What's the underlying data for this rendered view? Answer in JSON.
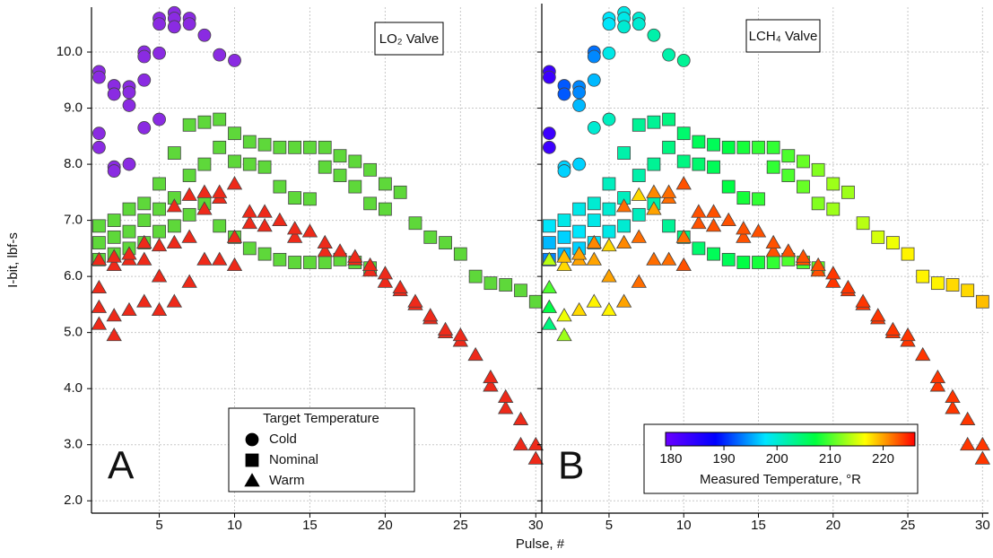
{
  "chart_data": {
    "type": "scatter",
    "x_label": "Pulse, #",
    "y_label": "I-bit, lbf-s",
    "xlim": [
      0.5,
      30.4
    ],
    "ylim": [
      1.78,
      10.8
    ],
    "xticks": [
      5,
      10,
      15,
      20,
      25,
      30
    ],
    "yticks": [
      {
        "value": 2,
        "label": "2.0"
      },
      {
        "value": 3,
        "label": "3.0"
      },
      {
        "value": 4,
        "label": "4.0"
      },
      {
        "value": 5,
        "label": "5.0"
      },
      {
        "value": 6,
        "label": "6.0"
      },
      {
        "value": 7,
        "label": "7.0"
      },
      {
        "value": 8,
        "label": "8.0"
      },
      {
        "value": 9,
        "label": "9.0"
      },
      {
        "value": 10,
        "label": "10.0"
      }
    ],
    "grid": true,
    "panels": [
      {
        "label": "A",
        "annotation": "LO₂ Valve",
        "color_by": "series"
      },
      {
        "label": "B",
        "annotation": "LCH₄ Valve",
        "color_by": "temperatures"
      }
    ],
    "legend": {
      "title": "Target Temperature",
      "corner": "lower-center"
    },
    "colorbar": {
      "title": "Measured Temperature, °R",
      "clim": [
        179,
        226
      ],
      "ticks": [
        180,
        190,
        200,
        210,
        220
      ],
      "colors": [
        "#6a00ff",
        "#0000ff",
        "#00e5ff",
        "#00ff40",
        "#ffff00",
        "#ff0000"
      ]
    },
    "series": [
      {
        "name": "Cold",
        "marker": "circle",
        "color": "#8a2be2",
        "x": [
          1,
          1,
          1,
          1,
          2,
          2,
          2,
          2,
          3,
          3,
          3,
          3,
          4,
          4,
          4,
          4,
          5,
          5,
          5,
          5,
          6,
          6,
          6,
          7,
          7,
          8,
          9,
          10
        ],
        "values": [
          9.65,
          9.55,
          8.55,
          8.3,
          9.4,
          9.25,
          7.95,
          7.88,
          9.38,
          9.28,
          9.05,
          8.0,
          10.0,
          9.92,
          9.5,
          8.65,
          10.6,
          10.5,
          9.98,
          8.8,
          10.7,
          10.6,
          10.45,
          10.6,
          10.5,
          10.3,
          9.95,
          9.85
        ],
        "temperatures": [
          183,
          183,
          183,
          183,
          192,
          192,
          197,
          197,
          194,
          194,
          196,
          197,
          193,
          194,
          196,
          200,
          198,
          198,
          199,
          201,
          199,
          199,
          200,
          200,
          200,
          202,
          202,
          203
        ]
      },
      {
        "name": "Nominal",
        "marker": "square",
        "color": "#5ed83a",
        "x": [
          1,
          2,
          3,
          4,
          5,
          6,
          7,
          8,
          9,
          10,
          11,
          12,
          13,
          14,
          15,
          16,
          17,
          18,
          19,
          20,
          21,
          22,
          23,
          24,
          25,
          26,
          27,
          28,
          29,
          30,
          1,
          2,
          3,
          4,
          5,
          6,
          7,
          8,
          9,
          10,
          11,
          12,
          13,
          14,
          15,
          16,
          17,
          18,
          19,
          20,
          1,
          2,
          3,
          4,
          5,
          6,
          7,
          8,
          9,
          10,
          11,
          12,
          13,
          14,
          15,
          16,
          17,
          18,
          19
        ],
        "values": [
          6.9,
          7.0,
          7.2,
          7.3,
          7.65,
          8.2,
          8.7,
          8.75,
          8.8,
          8.55,
          8.4,
          8.35,
          8.3,
          8.3,
          8.3,
          8.3,
          8.15,
          8.05,
          7.9,
          7.65,
          7.5,
          6.95,
          6.7,
          6.6,
          6.4,
          6.0,
          5.88,
          5.85,
          5.75,
          5.55,
          6.6,
          6.7,
          6.8,
          7.0,
          7.2,
          7.4,
          7.8,
          8.0,
          8.3,
          8.05,
          8.0,
          7.95,
          7.6,
          7.4,
          7.38,
          7.95,
          7.8,
          7.6,
          7.3,
          7.2,
          6.3,
          6.4,
          6.5,
          6.6,
          6.8,
          6.9,
          7.1,
          7.3,
          6.9,
          6.7,
          6.5,
          6.4,
          6.3,
          6.25,
          6.25,
          6.25,
          6.3,
          6.25,
          6.15
        ],
        "temperatures": [
          198,
          199,
          199,
          200,
          201,
          202,
          203,
          203,
          204,
          205,
          206,
          206,
          207,
          208,
          209,
          209,
          210,
          211,
          212,
          213,
          213,
          214,
          215,
          216,
          217,
          217,
          217,
          218,
          218,
          219,
          196,
          197,
          198,
          199,
          200,
          201,
          202,
          203,
          204,
          204,
          205,
          206,
          207,
          208,
          209,
          209,
          210,
          211,
          212,
          213,
          194,
          196,
          197,
          198,
          199,
          200,
          201,
          202,
          203,
          204,
          205,
          206,
          206,
          207,
          208,
          209,
          210,
          210,
          211
        ]
      },
      {
        "name": "Warm",
        "marker": "triangle",
        "color": "#ee2a1a",
        "x": [
          1,
          1,
          1,
          1,
          2,
          2,
          2,
          2,
          3,
          3,
          3,
          4,
          4,
          4,
          5,
          5,
          5,
          6,
          6,
          6,
          7,
          7,
          7,
          8,
          8,
          8,
          9,
          9,
          9,
          10,
          10,
          10,
          11,
          11,
          12,
          12,
          13,
          14,
          14,
          15,
          16,
          16,
          17,
          18,
          18,
          19,
          19,
          20,
          20,
          21,
          21,
          22,
          22,
          23,
          23,
          24,
          24,
          25,
          25,
          26,
          27,
          27,
          28,
          28,
          29,
          29,
          30,
          30
        ],
        "values": [
          5.15,
          5.45,
          5.8,
          6.3,
          4.95,
          5.3,
          6.2,
          6.35,
          5.4,
          6.3,
          6.4,
          5.55,
          6.3,
          6.6,
          5.4,
          6.0,
          6.55,
          5.55,
          6.6,
          7.25,
          5.9,
          6.7,
          7.45,
          6.3,
          7.2,
          7.5,
          6.3,
          7.4,
          7.5,
          6.2,
          6.7,
          7.65,
          6.95,
          7.15,
          6.9,
          7.15,
          7.0,
          6.7,
          6.85,
          6.8,
          6.45,
          6.6,
          6.45,
          6.3,
          6.35,
          6.1,
          6.2,
          5.9,
          6.05,
          5.75,
          5.8,
          5.5,
          5.55,
          5.25,
          5.3,
          5.0,
          5.05,
          4.85,
          4.95,
          4.6,
          4.05,
          4.2,
          3.65,
          3.85,
          3.0,
          3.45,
          2.75,
          3.0
        ],
        "temperatures": [
          204,
          207,
          210,
          214,
          213,
          216,
          218,
          219,
          218,
          220,
          220,
          217,
          220,
          221,
          217,
          220,
          218,
          220,
          221,
          222,
          222,
          222,
          218,
          222,
          220,
          221,
          222,
          222,
          222,
          223,
          222,
          223,
          223,
          223,
          223,
          223,
          223,
          223,
          223,
          223,
          223,
          223,
          223,
          223,
          223,
          223,
          223,
          224,
          224,
          224,
          224,
          224,
          224,
          224,
          224,
          224,
          224,
          224,
          224,
          224,
          224,
          224,
          224,
          224,
          224,
          224,
          224,
          224
        ]
      }
    ]
  }
}
